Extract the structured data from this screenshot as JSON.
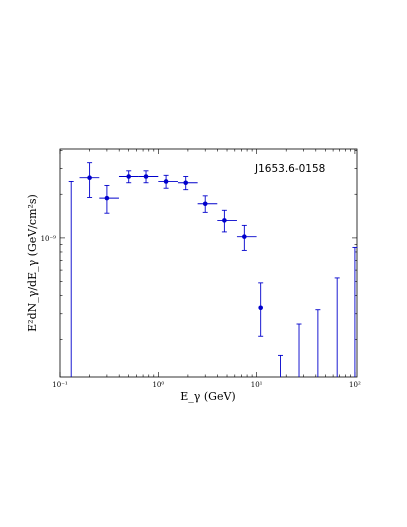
{
  "chart_data": {
    "type": "scatter",
    "x_scale": "log",
    "y_scale": "log",
    "xlim": [
      0.1,
      105
    ],
    "ylim": [
      1.1e-10,
      4.1e-09
    ],
    "xlabel": "E_γ (GeV)",
    "ylabel": "E²dN_γ/dE_γ (GeV/cm²s)",
    "annotation": "J1653.6-0158",
    "x_ticks": [
      {
        "value": 0.1,
        "label": "10⁻¹"
      },
      {
        "value": 1,
        "label": "10⁰"
      },
      {
        "value": 10,
        "label": "10¹"
      },
      {
        "value": 100,
        "label": "10²"
      }
    ],
    "y_ticks": [
      {
        "value": 1e-09,
        "label": "10⁻⁹"
      }
    ],
    "marker_color": "#0000cc",
    "points": [
      {
        "x": 0.2,
        "y": 2.6e-09,
        "xlo": 0.158,
        "xhi": 0.251,
        "ylo": 1.9e-09,
        "yhi": 3.3e-09
      },
      {
        "x": 0.3,
        "y": 1.88e-09,
        "xlo": 0.251,
        "xhi": 0.398,
        "ylo": 1.48e-09,
        "yhi": 2.3e-09
      },
      {
        "x": 0.5,
        "y": 2.65e-09,
        "xlo": 0.398,
        "xhi": 0.631,
        "ylo": 2.4e-09,
        "yhi": 2.9e-09
      },
      {
        "x": 0.75,
        "y": 2.65e-09,
        "xlo": 0.631,
        "xhi": 1.0,
        "ylo": 2.4e-09,
        "yhi": 2.9e-09
      },
      {
        "x": 1.2,
        "y": 2.45e-09,
        "xlo": 1.0,
        "xhi": 1.585,
        "ylo": 2.2e-09,
        "yhi": 2.7e-09
      },
      {
        "x": 1.9,
        "y": 2.4e-09,
        "xlo": 1.585,
        "xhi": 2.512,
        "ylo": 2.15e-09,
        "yhi": 2.65e-09
      },
      {
        "x": 3.0,
        "y": 1.72e-09,
        "xlo": 2.512,
        "xhi": 3.981,
        "ylo": 1.5e-09,
        "yhi": 1.95e-09
      },
      {
        "x": 4.7,
        "y": 1.32e-09,
        "xlo": 3.981,
        "xhi": 6.31,
        "ylo": 1.1e-09,
        "yhi": 1.55e-09
      },
      {
        "x": 7.5,
        "y": 1.02e-09,
        "xlo": 6.31,
        "xhi": 10.0,
        "ylo": 8.2e-10,
        "yhi": 1.22e-09
      },
      {
        "x": 11.0,
        "y": 3.3e-10,
        "xlo": null,
        "xhi": null,
        "ylo": 2.1e-10,
        "yhi": 4.9e-10
      }
    ],
    "upper_limits": [
      {
        "x": 0.13,
        "y": 2.45e-09
      },
      {
        "x": 17.5,
        "y": 1.55e-10
      },
      {
        "x": 27.0,
        "y": 2.55e-10
      },
      {
        "x": 42.0,
        "y": 3.2e-10
      },
      {
        "x": 66.0,
        "y": 5.3e-10
      },
      {
        "x": 100.0,
        "y": 8.6e-10
      }
    ]
  }
}
